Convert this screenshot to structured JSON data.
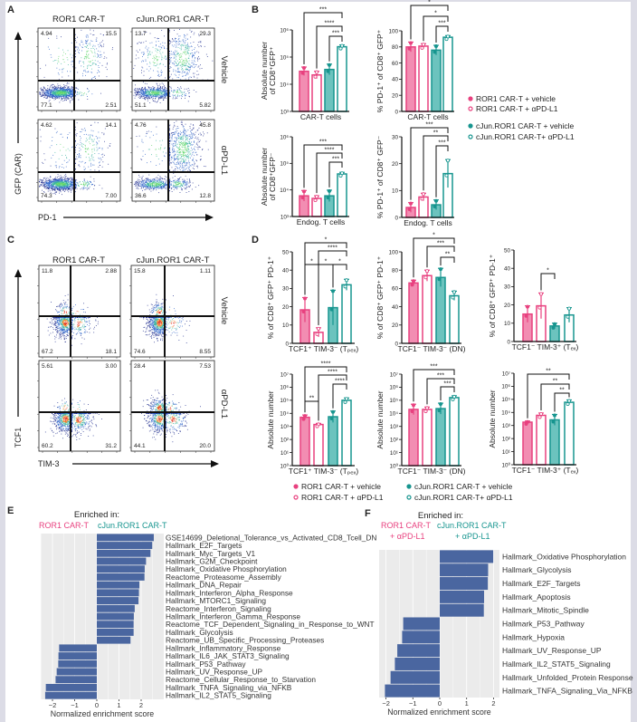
{
  "panel_labels": [
    "A",
    "B",
    "C",
    "D",
    "E",
    "F"
  ],
  "colors": {
    "ror1": "#e8417f",
    "ror1_fill": "#f28db2",
    "cjun": "#17958f",
    "cjun_fill": "#6cc3be",
    "gsea_bar": "#4a66a0",
    "gsea_bg": "#ebebeb"
  },
  "legends": {
    "B": [
      "ROR1 CAR-T + vehicle",
      "ROR1 CAR-T + αPD-L1",
      "cJun.ROR1 CAR-T + vehicle",
      "cJun.ROR1 CAR-T+ αPD-L1"
    ],
    "D": [
      "ROR1 CAR-T + vehicle",
      "ROR1 CAR-T + αPD-L1",
      "cJun.ROR1 CAR-T + vehicle",
      "cJun.ROR1 CAR-T+ αPD-L1"
    ]
  },
  "chart_data": [
    {
      "panel": "A",
      "type": "scatter",
      "columns": [
        "ROR1 CAR-T",
        "cJun.ROR1 CAR-T"
      ],
      "rows": [
        "Vehicle",
        "αPD-L1"
      ],
      "x_axis": "PD-1",
      "y_axis": "GFP (CAR)",
      "quadrant_percentages": [
        [
          "4.94",
          "15.5",
          "77.1",
          "2.51"
        ],
        [
          "13.7",
          "29.3",
          "51.1",
          "5.82"
        ],
        [
          "4.62",
          "14.1",
          "74.3",
          "7.00"
        ],
        [
          "4.76",
          "45.8",
          "36.6",
          "12.8"
        ]
      ]
    },
    {
      "panel": "C",
      "type": "scatter",
      "columns": [
        "ROR1 CAR-T",
        "cJun.ROR1 CAR-T"
      ],
      "rows": [
        "Vehicle",
        "αPD-L1"
      ],
      "x_axis": "TIM-3",
      "y_axis": "TCF1",
      "quadrant_percentages": [
        [
          "11.8",
          "2.88",
          "67.2",
          "18.1"
        ],
        [
          "15.8",
          "1.11",
          "74.6",
          "8.55"
        ],
        [
          "5.61",
          "3.00",
          "60.2",
          "31.2"
        ],
        [
          "28.4",
          "7.53",
          "44.1",
          "20.0"
        ]
      ]
    },
    {
      "panel": "B",
      "type": "bar",
      "scale": "log",
      "ylim": [
        1000,
        1000000
      ],
      "ticks": [
        3,
        4,
        5,
        6
      ],
      "tick_labels": [
        "10³",
        "10⁴",
        "10⁵",
        "10⁶"
      ],
      "ylabel": [
        "Absolute number",
        "of CD8⁺GFP⁺"
      ],
      "xlabel": "CAR-T cells",
      "values": [
        30000,
        22000,
        35000,
        240000
      ],
      "upper": [
        43000,
        30000,
        55000,
        280000
      ],
      "significance": [
        {
          "from": 0,
          "to": 3,
          "label": "***"
        },
        {
          "from": 1,
          "to": 3,
          "label": "****"
        },
        {
          "from": 2,
          "to": 3,
          "label": "***"
        }
      ]
    },
    {
      "panel": "B",
      "type": "bar",
      "scale": "linear",
      "ylim": [
        0,
        100
      ],
      "ticks": [
        0,
        20,
        40,
        60,
        80,
        100
      ],
      "tick_labels": [
        "0",
        "20",
        "40",
        "60",
        "80",
        "100"
      ],
      "ylabel": [
        "% PD-1⁺ of CD8⁺ GFP⁺"
      ],
      "xlabel": "CAR-T cells",
      "values": [
        80,
        81,
        76,
        92
      ],
      "upper": [
        86,
        84,
        82,
        94
      ],
      "significance": [
        {
          "from": 0,
          "to": 3,
          "label": "*"
        },
        {
          "from": 1,
          "to": 3,
          "label": "*"
        },
        {
          "from": 2,
          "to": 3,
          "label": "***"
        }
      ]
    },
    {
      "panel": "B",
      "type": "bar",
      "scale": "log",
      "ylim": [
        1000,
        1000000
      ],
      "ticks": [
        3,
        4,
        5,
        6
      ],
      "tick_labels": [
        "10³",
        "10⁴",
        "10⁵",
        "10⁶"
      ],
      "ylabel": [
        "Absolute number",
        "of CD8⁺GFP⁻"
      ],
      "xlabel": "Endog. T cells",
      "values": [
        6000,
        4800,
        6000,
        40000
      ],
      "upper": [
        9500,
        6000,
        9800,
        46000
      ],
      "significance": [
        {
          "from": 0,
          "to": 3,
          "label": "***"
        },
        {
          "from": 1,
          "to": 3,
          "label": "****"
        },
        {
          "from": 2,
          "to": 3,
          "label": "***"
        }
      ]
    },
    {
      "panel": "B",
      "type": "bar",
      "scale": "linear",
      "ylim": [
        0,
        30
      ],
      "ticks": [
        0,
        10,
        20,
        30
      ],
      "tick_labels": [
        "0",
        "10",
        "20",
        "30"
      ],
      "ylabel": [
        "% PD-1⁺ of CD8⁺ GFP⁻"
      ],
      "xlabel": "Endog. T cells",
      "values": [
        3.7,
        7.6,
        4.7,
        16.3
      ],
      "upper": [
        5.5,
        9,
        6.5,
        21.5
      ],
      "significance": [
        {
          "from": 0,
          "to": 3,
          "label": "***"
        },
        {
          "from": 1,
          "to": 3,
          "label": "**"
        },
        {
          "from": 2,
          "to": 3,
          "label": "***"
        }
      ]
    },
    {
      "panel": "D",
      "type": "bar",
      "scale": "linear",
      "ylim": [
        0,
        50
      ],
      "ticks": [
        0,
        10,
        20,
        30,
        40,
        50
      ],
      "tick_labels": [
        "0",
        "10",
        "20",
        "30",
        "40",
        "50"
      ],
      "ylabel": [
        "% of CD8⁺ GFP⁺ PD-1⁺"
      ],
      "xlabel": "TCF1⁺ TIM-3⁻ (Tₚₑₓ)",
      "values": [
        18.3,
        6,
        19.5,
        32
      ],
      "upper": [
        25,
        8.5,
        29,
        35
      ],
      "significance": [
        {
          "from": 0,
          "to": 3,
          "label": "*"
        },
        {
          "from": 1,
          "to": 3,
          "label": "****"
        },
        {
          "from": 0,
          "to": 1,
          "label": "*"
        },
        {
          "from": 1,
          "to": 2,
          "label": "*"
        },
        {
          "from": 2,
          "to": 3,
          "label": "*"
        }
      ]
    },
    {
      "panel": "D",
      "type": "bar",
      "scale": "linear",
      "ylim": [
        0,
        100
      ],
      "ticks": [
        0,
        20,
        40,
        60,
        80,
        100
      ],
      "tick_labels": [
        "0",
        "20",
        "40",
        "60",
        "80",
        "100"
      ],
      "ylabel": [
        "% of CD8⁺ GFP⁺ PD-1⁺"
      ],
      "xlabel": "TCF1⁻ TIM-3⁻ (DN)",
      "values": [
        66,
        74,
        72,
        52
      ],
      "upper": [
        69,
        80,
        82,
        57
      ],
      "significance": [
        {
          "from": 0,
          "to": 3,
          "label": "*"
        },
        {
          "from": 1,
          "to": 3,
          "label": "***"
        },
        {
          "from": 2,
          "to": 3,
          "label": "**"
        }
      ]
    },
    {
      "panel": "D",
      "type": "bar",
      "scale": "linear",
      "ylim": [
        0,
        50
      ],
      "ticks": [
        0,
        10,
        20,
        30,
        40,
        50
      ],
      "tick_labels": [
        "0",
        "10",
        "20",
        "30",
        "40",
        "50"
      ],
      "ylabel": [
        "% of CD8⁺ GFP⁺ PD-1⁺"
      ],
      "xlabel": "TCF1⁻ TIM-3⁺ (Tₑₓ)",
      "values": [
        15,
        19.5,
        8.5,
        14.5
      ],
      "upper": [
        19.5,
        26.5,
        10,
        18.5
      ],
      "significance": [
        {
          "from": 1,
          "to": 2,
          "label": "*"
        }
      ]
    },
    {
      "panel": "D",
      "type": "bar",
      "scale": "log",
      "ylim": [
        1,
        10000000
      ],
      "ticks": [
        0,
        1,
        2,
        3,
        4,
        5,
        6,
        7
      ],
      "tick_labels": [
        "10⁰",
        "10¹",
        "10²",
        "10³",
        "10⁴",
        "10⁵",
        "10⁶",
        "10⁷"
      ],
      "ylabel": [
        "Absolute number"
      ],
      "xlabel": "TCF1⁺ TIM-3⁻ (Tₚₑₓ)",
      "values": [
        5000,
        1400,
        5500,
        100000
      ],
      "upper": [
        7500,
        1700,
        15000,
        150000
      ],
      "significance": [
        {
          "from": 0,
          "to": 3,
          "label": "****"
        },
        {
          "from": 1,
          "to": 3,
          "label": "****"
        },
        {
          "from": 2,
          "to": 3,
          "label": "****"
        },
        {
          "from": 0,
          "to": 1,
          "label": "**"
        }
      ]
    },
    {
      "panel": "D",
      "type": "bar",
      "scale": "log",
      "ylim": [
        1,
        10000000
      ],
      "ticks": [
        0,
        1,
        2,
        3,
        4,
        5,
        6,
        7
      ],
      "tick_labels": [
        "10⁰",
        "10¹",
        "10²",
        "10³",
        "10⁴",
        "10⁵",
        "10⁶",
        "10⁷"
      ],
      "ylabel": [
        "Absolute number"
      ],
      "xlabel": "TCF1⁻ TIM-3⁻ (DN)",
      "values": [
        20000,
        20000,
        23000,
        160000
      ],
      "upper": [
        50000,
        30000,
        60000,
        220000
      ],
      "significance": [
        {
          "from": 0,
          "to": 3,
          "label": "***"
        },
        {
          "from": 1,
          "to": 3,
          "label": "***"
        },
        {
          "from": 2,
          "to": 3,
          "label": "***"
        }
      ]
    },
    {
      "panel": "D",
      "type": "bar",
      "scale": "log",
      "ylim": [
        1,
        10000000
      ],
      "ticks": [
        0,
        1,
        2,
        3,
        4,
        5,
        6,
        7
      ],
      "tick_labels": [
        "10⁰",
        "10¹",
        "10²",
        "10³",
        "10⁴",
        "10⁵",
        "10⁶",
        "10⁷"
      ],
      "ylabel": [
        "Absolute number"
      ],
      "xlabel": "TCF1⁻ TIM-3⁺ (Tₑₓ)",
      "values": [
        1800,
        6000,
        2700,
        60000
      ],
      "upper": [
        2200,
        9000,
        7000,
        90000
      ],
      "significance": [
        {
          "from": 0,
          "to": 3,
          "label": "**"
        },
        {
          "from": 1,
          "to": 3,
          "label": "**"
        },
        {
          "from": 2,
          "to": 3,
          "label": "**"
        }
      ]
    },
    {
      "panel": "E",
      "type": "bar",
      "orientation": "horizontal",
      "header": "Enriched in:",
      "groups": [
        "ROR1 CAR-T",
        "cJun.ROR1 CAR-T"
      ],
      "group_suffix": [
        "",
        ""
      ],
      "xlabel": "Normalized enrichment score",
      "xlim": [
        -2.5,
        2.7
      ],
      "xticks": [
        -2,
        -1,
        0,
        1,
        2
      ],
      "xtick_labels": [
        "−2",
        "−1",
        "0",
        "1",
        "2"
      ],
      "categories": [
        "GSE14699_Deletional_Tolerance_vs_Activated_CD8_Tcell_DN",
        "Hallmark_E2F_Targets",
        "Hallmark_Myc_Targets_V1",
        "Hallmark_G2M_Checkpoint",
        "Hallmark_Oxidative Phosphorylation",
        "Reactome_Proteasome_Assembly",
        "Hallmark_DNA_Repair",
        "Hallmark_Interferon_Alpha_Response",
        "Hallmark_MTORC1_Signaling",
        "Reactome_Interferon_Signaling",
        "Hallmark_Interferon_Gamma_Response",
        "Reactome_TCF_Dependent_Signaling_in_Response_to_WNT",
        "Hallmark_Glycolysis",
        "Reactome_UB_Specific_Processing_Proteases",
        "Hallmark_Inflammatory_Response",
        "Hallmark_IL6_JAK_STAT3_Signaling",
        "Hallmark_P53_Pathway",
        "Hallmark_UV_Response_UP",
        "Reactome_Cellular_Response_to_Starvation",
        "Hallmark_TNFA_Signaling_via_NFKB",
        "Hallmark_IL2_STAT5_Signaling"
      ],
      "values": [
        2.57,
        2.5,
        2.42,
        2.22,
        2.16,
        2.15,
        1.92,
        1.9,
        1.88,
        1.71,
        1.67,
        1.66,
        1.66,
        1.52,
        -1.7,
        -1.73,
        -1.74,
        -1.81,
        -1.86,
        -2.3,
        -2.33
      ]
    },
    {
      "panel": "F",
      "type": "bar",
      "orientation": "horizontal",
      "header": "Enriched in:",
      "groups": [
        "ROR1 CAR-T",
        "cJun.ROR1 CAR-T"
      ],
      "group_suffix": [
        "+ αPD-L1",
        "+ αPD-L1"
      ],
      "xlabel": "Normalized enrichment score",
      "xlim": [
        -2.2,
        2.1
      ],
      "xticks": [
        -2,
        -1,
        0,
        1,
        2
      ],
      "xtick_labels": [
        "−2",
        "−1",
        "0",
        "1",
        "2"
      ],
      "categories": [
        "Hallmark_Oxidative Phosphorylation",
        "Hallmark_Glycolysis",
        "Hallmark_E2F_Targets",
        "Hallmark_Apoptosis",
        "Hallmark_Mitotic_Spindle",
        "Hallmark_P53_Pathway",
        "Hallmark_Hypoxia",
        "Hallmark_UV_Response_UP",
        "Hallmark_IL2_STAT5_Signaling",
        "Hallmark_Unfolded_Protein Response",
        "Hallmark_TNFA_Signaling_Via_NFKB"
      ],
      "values": [
        1.99,
        1.8,
        1.79,
        1.65,
        1.64,
        -1.36,
        -1.4,
        -1.58,
        -1.67,
        -1.83,
        -2.04
      ]
    }
  ]
}
